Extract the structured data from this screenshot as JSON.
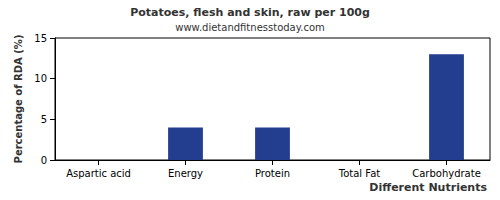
{
  "chart_data": {
    "type": "bar",
    "title": "Potatoes, flesh and skin, raw per 100g",
    "subtitle": "www.dietandfitnesstoday.com",
    "x_label": "Different Nutrients",
    "y_label": "Percentage of RDA (%)",
    "categories": [
      "Aspartic acid",
      "Energy",
      "Protein",
      "Total Fat",
      "Carbohydrate"
    ],
    "values": [
      0,
      4,
      4,
      0,
      13
    ],
    "color": "#233d8f",
    "ylim": [
      0,
      15
    ],
    "yticks": [
      0,
      5,
      10,
      15
    ],
    "grid": false
  }
}
